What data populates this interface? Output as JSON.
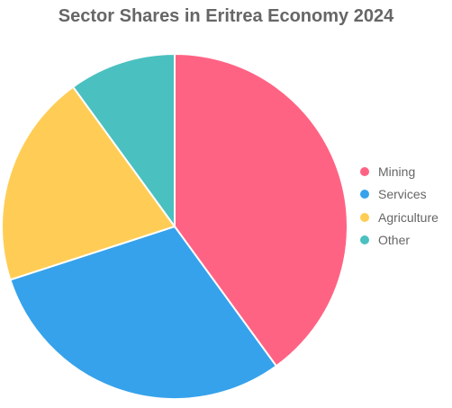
{
  "chart_data": {
    "type": "pie",
    "title": "Sector Shares in Eritrea Economy 2024",
    "categories": [
      "Mining",
      "Services",
      "Agriculture",
      "Other"
    ],
    "values": [
      40,
      30,
      20,
      10
    ],
    "colors": [
      "#ff6384",
      "#36a2eb",
      "#ffcd56",
      "#4bc0c0"
    ],
    "legend_position": "right"
  }
}
